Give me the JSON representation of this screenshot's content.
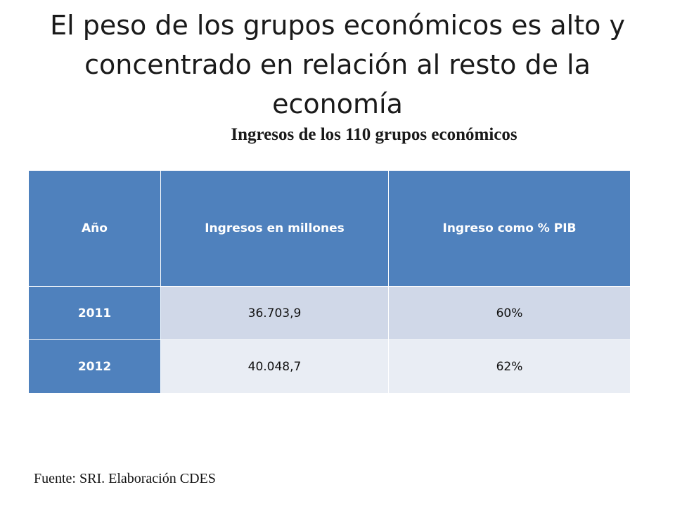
{
  "title": {
    "line1": "El peso de los grupos económicos es alto y",
    "line2": "concentrado en relación al resto de la",
    "line3": "economía"
  },
  "subtitle": "Ingresos de los 110 grupos económicos",
  "table": {
    "headers": [
      "Año",
      "Ingresos en millones",
      "Ingreso como % PIB"
    ],
    "rows": [
      [
        "2011",
        "36.703,9",
        "60%"
      ],
      [
        "2012",
        "40.048,7",
        "62%"
      ]
    ]
  },
  "source": "Fuente: SRI. Elaboración CDES",
  "colors": {
    "header_bg": "#4f81bd",
    "row_band_1": "#d0d8e8",
    "row_band_2": "#e9edf4"
  }
}
